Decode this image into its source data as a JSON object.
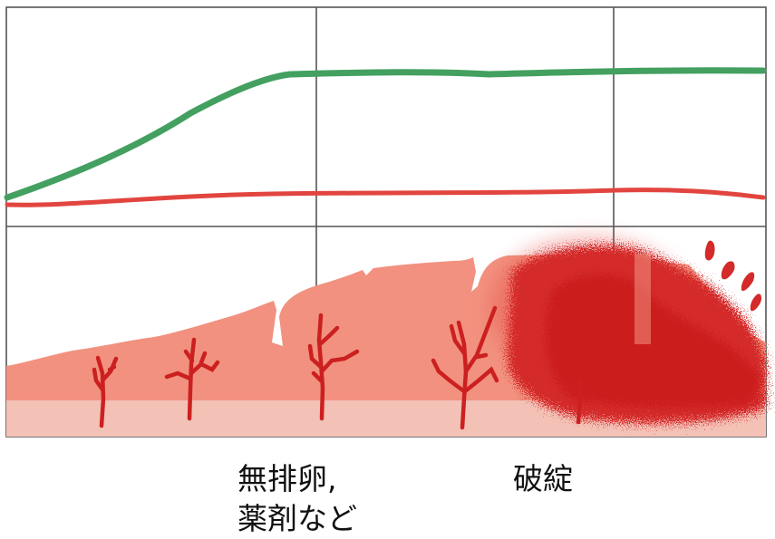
{
  "labels": {
    "anovulation_line1": "無排卵,",
    "anovulation_line2": "薬剤など",
    "breakdown": "破綻"
  },
  "colors": {
    "green_line": "#43a060",
    "red_line": "#e2453f",
    "endometrium": "#f2917f",
    "basal_layer": "#f3c1b6",
    "bleeding": "#d42a2a",
    "vessel": "#cc2020",
    "grid": "#555555"
  },
  "icons": [
    "blood-drop-icon"
  ]
}
